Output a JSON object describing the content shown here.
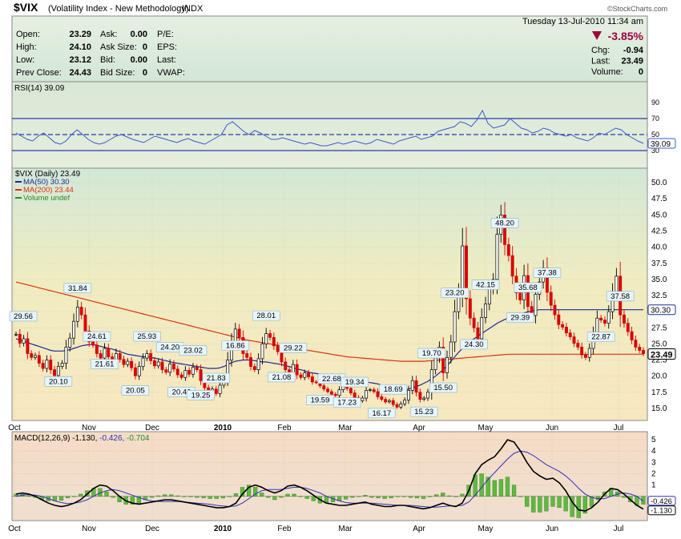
{
  "header": {
    "symbol": "$VIX",
    "name": "(Volatility Index - New Methodology)",
    "exchange": "INDX",
    "date": "Tuesday  13-Jul-2010 11:34 am",
    "brand": "©StockCharts.com"
  },
  "quote": {
    "rows": [
      {
        "l1": "Open:",
        "v1": "23.29",
        "l2": "Ask:",
        "v2": "0.00",
        "l3": "P/E:"
      },
      {
        "l1": "High:",
        "v1": "24.10",
        "l2": "Ask Size:",
        "v2": "0",
        "l3": "EPS:"
      },
      {
        "l1": "Low:",
        "v1": "23.12",
        "l2": "Bid:",
        "v2": "0.00",
        "l3": "Last:"
      },
      {
        "l1": "Prev Close:",
        "v1": "24.43",
        "l2": "Bid Size:",
        "v2": "0",
        "l3": "VWAP:"
      }
    ],
    "pct_change": "-3.85%",
    "right": [
      {
        "label": "Chg:",
        "value": "-0.94"
      },
      {
        "label": "Last:",
        "value": "23.49"
      },
      {
        "label": "Volume:",
        "value": "0"
      }
    ]
  },
  "colors": {
    "up": "#00a000",
    "down": "#e00000",
    "ma50": "#1a2a9a",
    "ma200": "#e03010",
    "rsi": "#3a5ad0",
    "macd": "#000000",
    "signal": "#3030c0",
    "hist": "#50b030",
    "grid": "#a0a0a0",
    "panel_bg_top": "#dcebe0",
    "down_arrow": "#a00040"
  },
  "chart_data": [
    {
      "type": "line",
      "title": "RSI(14) 39.09",
      "ylim": [
        10,
        100
      ],
      "yticks": [
        90,
        70,
        50,
        30
      ],
      "levels": [
        70,
        50,
        30
      ],
      "last_label": "39.09",
      "values": [
        52,
        48,
        44,
        42,
        48,
        52,
        46,
        40,
        38,
        42,
        50,
        56,
        50,
        44,
        40,
        38,
        40,
        44,
        48,
        50,
        47,
        44,
        42,
        40,
        44,
        48,
        46,
        44,
        42,
        40,
        43,
        45,
        42,
        40,
        38,
        42,
        46,
        50,
        62,
        66,
        60,
        54,
        50,
        55,
        52,
        48,
        44,
        44,
        46,
        44,
        42,
        40,
        38,
        40,
        38,
        36,
        36,
        38,
        40,
        38,
        40,
        42,
        40,
        38,
        40,
        44,
        42,
        40,
        38,
        42,
        44,
        46,
        48,
        44,
        46,
        48,
        54,
        56,
        58,
        60,
        66,
        64,
        60,
        68,
        80,
        64,
        58,
        60,
        62,
        70,
        64,
        58,
        56,
        52,
        54,
        58,
        56,
        52,
        50,
        48,
        50,
        46,
        44,
        42,
        46,
        52,
        50,
        54,
        58,
        56,
        50,
        46,
        42,
        39
      ]
    },
    {
      "type": "candlestick",
      "title": "$VIX (Daily) 23.49",
      "ylim": [
        13.5,
        52
      ],
      "yticks": [
        50.0,
        47.5,
        45.0,
        42.5,
        40.0,
        37.5,
        35.0,
        32.5,
        30.0,
        27.5,
        25.0,
        22.5,
        20.0,
        17.5,
        15.0
      ],
      "legend": [
        "MA(50) 30.30",
        "MA(200) 23.44",
        "Volume undef"
      ],
      "x_ticks": [
        "Oct",
        "Nov",
        "Dec",
        "2010",
        "Feb",
        "Mar",
        "Apr",
        "May",
        "Jun",
        "Jul"
      ],
      "last_price": "23.49",
      "ma50_label": "30.30",
      "closes": [
        26.5,
        25.1,
        25.8,
        23.5,
        22.9,
        23.2,
        22.0,
        21.2,
        22.5,
        21.0,
        20.1,
        21.5,
        22.0,
        24.5,
        25.9,
        28.5,
        30.7,
        29.5,
        27.0,
        25.3,
        24.8,
        23.5,
        22.8,
        24.3,
        23.0,
        22.1,
        23.5,
        22.6,
        21.8,
        22.3,
        21.3,
        20.05,
        21.5,
        22.8,
        23.5,
        22.4,
        21.6,
        22.2,
        21.0,
        20.6,
        21.9,
        21.1,
        20.2,
        19.8,
        20.9,
        20.3,
        21.4,
        21.0,
        19.3,
        18.2,
        17.5,
        18.0,
        17.3,
        18.6,
        19.5,
        22.5,
        25.4,
        27.3,
        26.0,
        23.5,
        22.9,
        21.5,
        21.0,
        22.7,
        25.0,
        26.6,
        26.0,
        24.7,
        23.8,
        22.2,
        21.0,
        20.5,
        21.8,
        20.2,
        19.8,
        20.5,
        19.9,
        19.1,
        19.0,
        18.5,
        18.0,
        17.6,
        17.2,
        17.0,
        17.9,
        18.7,
        18.1,
        17.4,
        16.7,
        16.2,
        16.6,
        17.8,
        17.9,
        17.6,
        16.8,
        16.4,
        16.0,
        16.2,
        15.6,
        15.2,
        15.7,
        16.3,
        17.8,
        19.3,
        17.5,
        16.4,
        16.6,
        17.5,
        21.0,
        22.8,
        24.5,
        20.5,
        22.9,
        25.3,
        30.0,
        33.0,
        40.2,
        32.0,
        29.0,
        27.5,
        25.8,
        29.1,
        31.2,
        33.5,
        35.0,
        42.0,
        45.0,
        40.4,
        38.7,
        35.5,
        32.9,
        31.8,
        35.6,
        30.8,
        29.4,
        32.7,
        34.6,
        36.8,
        33.0,
        31.0,
        29.5,
        28.0,
        27.6,
        26.7,
        26.1,
        25.1,
        24.5,
        23.3,
        22.9,
        24.3,
        26.6,
        29.0,
        28.7,
        28.2,
        30.0,
        33.0,
        35.5,
        29.5,
        28.2,
        26.9,
        25.6,
        24.5,
        24.0,
        23.49
      ],
      "ma50": [
        25.8,
        25.6,
        25.4,
        25.2,
        25.0,
        24.8,
        24.6,
        24.4,
        24.2,
        24.0,
        23.9,
        23.9,
        23.9,
        24.0,
        24.1,
        24.3,
        24.5,
        24.7,
        24.8,
        24.9,
        24.9,
        24.8,
        24.6,
        24.5,
        24.3,
        24.2,
        24.0,
        23.8,
        23.6,
        23.4,
        23.3,
        23.2,
        23.1,
        23.0,
        23.0,
        22.9,
        22.8,
        22.7,
        22.5,
        22.4,
        22.2,
        22.1,
        22.0,
        21.9,
        21.8,
        21.7,
        21.6,
        21.5,
        21.4,
        21.3,
        21.2,
        21.2,
        21.2,
        21.3,
        21.5,
        21.8,
        22.1,
        22.3,
        22.4,
        22.5,
        22.5,
        22.5,
        22.4,
        22.3,
        22.2,
        22.2,
        22.1,
        22.0,
        21.9,
        21.8,
        21.6,
        21.5,
        21.3,
        21.1,
        21.0,
        20.8,
        20.6,
        20.5,
        20.4,
        20.3,
        20.2,
        20.1,
        20.0,
        19.9,
        19.8,
        19.7,
        19.6,
        19.5,
        19.4,
        19.3,
        19.2,
        19.1,
        19.0,
        18.9,
        18.8,
        18.6,
        18.5,
        18.3,
        18.2,
        18.0,
        17.9,
        17.9,
        18.0,
        18.2,
        18.4,
        18.6,
        18.9,
        19.2,
        19.6,
        20.0,
        20.5,
        21.0,
        21.6,
        22.3,
        23.0,
        23.7,
        24.3,
        24.9,
        25.4,
        25.8,
        26.2,
        26.6,
        27.0,
        27.4,
        27.8,
        28.2,
        28.5,
        28.8,
        29.0,
        29.2,
        29.4,
        29.6,
        29.8,
        30.0,
        30.1,
        30.2,
        30.3,
        30.3,
        30.3,
        30.3,
        30.3,
        30.3,
        30.3,
        30.3,
        30.3,
        30.3,
        30.3,
        30.3,
        30.3,
        30.3,
        30.3,
        30.3,
        30.3,
        30.3,
        30.3,
        30.3,
        30.3,
        30.3,
        30.3,
        30.3,
        30.3,
        30.3,
        30.3,
        30.3
      ],
      "ma200": [
        34.6,
        34.45,
        34.3,
        34.15,
        34.0,
        33.85,
        33.7,
        33.55,
        33.4,
        33.25,
        33.1,
        32.95,
        32.8,
        32.65,
        32.5,
        32.35,
        32.2,
        32.05,
        31.9,
        31.75,
        31.6,
        31.45,
        31.3,
        31.15,
        31.0,
        30.85,
        30.7,
        30.55,
        30.4,
        30.25,
        30.1,
        29.95,
        29.8,
        29.65,
        29.5,
        29.35,
        29.2,
        29.05,
        28.9,
        28.75,
        28.6,
        28.45,
        28.3,
        28.15,
        28.0,
        27.85,
        27.7,
        27.55,
        27.4,
        27.25,
        27.1,
        26.95,
        26.8,
        26.65,
        26.5,
        26.35,
        26.2,
        26.05,
        25.9,
        25.75,
        25.6,
        25.5,
        25.4,
        25.3,
        25.2,
        25.1,
        25.0,
        24.9,
        24.8,
        24.7,
        24.6,
        24.5,
        24.4,
        24.3,
        24.2,
        24.1,
        24.0,
        23.9,
        23.8,
        23.7,
        23.6,
        23.5,
        23.4,
        23.3,
        23.2,
        23.1,
        23.0,
        22.95,
        22.9,
        22.85,
        22.8,
        22.75,
        22.7,
        22.65,
        22.6,
        22.55,
        22.5,
        22.45,
        22.4,
        22.35,
        22.3,
        22.3,
        22.3,
        22.3,
        22.3,
        22.3,
        22.3,
        22.35,
        22.4,
        22.45,
        22.5,
        22.55,
        22.6,
        22.65,
        22.7,
        22.75,
        22.8,
        22.85,
        22.9,
        22.95,
        23.0,
        23.05,
        23.1,
        23.15,
        23.2,
        23.25,
        23.3,
        23.35,
        23.4,
        23.4,
        23.4,
        23.4,
        23.4,
        23.4,
        23.4,
        23.4,
        23.4,
        23.4,
        23.4,
        23.4,
        23.4,
        23.4,
        23.4,
        23.4,
        23.4,
        23.4,
        23.4,
        23.4,
        23.4,
        23.4,
        23.4,
        23.4,
        23.4,
        23.4,
        23.4,
        23.4,
        23.4,
        23.4,
        23.4,
        23.4,
        23.4,
        23.4,
        23.4,
        23.44
      ],
      "annotations": [
        {
          "i": 0,
          "text": "29.56",
          "pos": "above"
        },
        {
          "i": 11,
          "text": "20.10",
          "pos": "below"
        },
        {
          "i": 16,
          "text": "31.84",
          "pos": "above"
        },
        {
          "i": 21,
          "text": "24.61",
          "pos": "above"
        },
        {
          "i": 23,
          "text": "21.61",
          "pos": "below"
        },
        {
          "i": 31,
          "text": "20.05",
          "pos": "below"
        },
        {
          "i": 34,
          "text": "25.93",
          "pos": "above"
        },
        {
          "i": 40,
          "text": "24.20",
          "pos": "above"
        },
        {
          "i": 43,
          "text": "20.46",
          "pos": "below"
        },
        {
          "i": 46,
          "text": "23.02",
          "pos": "above"
        },
        {
          "i": 48,
          "text": "19.25",
          "pos": "below"
        },
        {
          "i": 52,
          "text": "21.83",
          "pos": "above"
        },
        {
          "i": 57,
          "text": "16.86",
          "pos": "below"
        },
        {
          "i": 65,
          "text": "28.01",
          "pos": "above"
        },
        {
          "i": 69,
          "text": "21.08",
          "pos": "below"
        },
        {
          "i": 72,
          "text": "29.22",
          "pos": "above"
        },
        {
          "i": 79,
          "text": "19.59",
          "pos": "below"
        },
        {
          "i": 82,
          "text": "22.68",
          "pos": "above"
        },
        {
          "i": 86,
          "text": "17.23",
          "pos": "below"
        },
        {
          "i": 88,
          "text": "19.34",
          "pos": "above"
        },
        {
          "i": 95,
          "text": "16.17",
          "pos": "below"
        },
        {
          "i": 98,
          "text": "18.69",
          "pos": "above"
        },
        {
          "i": 106,
          "text": "15.23",
          "pos": "below"
        },
        {
          "i": 108,
          "text": "19.70",
          "pos": "above"
        },
        {
          "i": 111,
          "text": "15.50",
          "pos": "below"
        },
        {
          "i": 114,
          "text": "23.20",
          "pos": "above"
        },
        {
          "i": 119,
          "text": "24.30",
          "pos": "below"
        },
        {
          "i": 122,
          "text": "42.15",
          "pos": "above"
        },
        {
          "i": 127,
          "text": "48.20",
          "pos": "above"
        },
        {
          "i": 131,
          "text": "29.39",
          "pos": "below"
        },
        {
          "i": 133,
          "text": "35.68",
          "pos": "above"
        },
        {
          "i": 138,
          "text": "37.38",
          "pos": "above"
        },
        {
          "i": 152,
          "text": "22.87",
          "pos": "below"
        },
        {
          "i": 157,
          "text": "37.58",
          "pos": "above"
        }
      ]
    },
    {
      "type": "line",
      "title": "MACD(12,26,9) -1.130, -0.426, -0.704",
      "title_parts": [
        "MACD(12,26,9) -1.130,",
        "-0.426,",
        "-0.704"
      ],
      "ylim": [
        -2,
        5.5
      ],
      "yticks": [
        5,
        4,
        3,
        2,
        1
      ],
      "labels_right": [
        "-0.426",
        "-1.130"
      ],
      "macd": [
        0.2,
        0.3,
        0.2,
        0.0,
        -0.3,
        -0.6,
        -0.8,
        -0.9,
        -0.8,
        -0.6,
        -0.3,
        0.2,
        0.7,
        1.0,
        0.9,
        0.5,
        0.0,
        -0.4,
        -0.6,
        -0.7,
        -0.6,
        -0.5,
        -0.4,
        -0.3,
        -0.3,
        -0.4,
        -0.5,
        -0.6,
        -0.7,
        -0.8,
        -0.9,
        -1.0,
        -1.0,
        -0.9,
        -0.6,
        0.2,
        0.8,
        1.0,
        0.8,
        0.5,
        0.3,
        0.5,
        0.9,
        1.0,
        0.8,
        0.5,
        0.1,
        -0.3,
        -0.6,
        -0.7,
        -0.8,
        -0.8,
        -0.7,
        -0.6,
        -0.5,
        -0.7,
        -0.8,
        -0.9,
        -0.9,
        -0.8,
        -0.8,
        -0.9,
        -1.0,
        -1.1,
        -1.0,
        -0.8,
        -0.6,
        -0.8,
        -0.9,
        -0.6,
        0.5,
        2.0,
        2.8,
        3.2,
        3.5,
        4.2,
        5.0,
        4.8,
        4.0,
        3.0,
        2.2,
        1.8,
        1.5,
        1.6,
        1.2,
        0.5,
        -0.5,
        -1.2,
        -1.3,
        -1.0,
        -0.5,
        0.2,
        0.7,
        0.6,
        0.2,
        -0.3,
        -0.8,
        -1.13
      ],
      "signal": [
        0.0,
        0.1,
        0.15,
        0.1,
        0.0,
        -0.2,
        -0.4,
        -0.55,
        -0.65,
        -0.6,
        -0.5,
        -0.3,
        0.0,
        0.3,
        0.5,
        0.6,
        0.5,
        0.3,
        0.1,
        -0.1,
        -0.3,
        -0.4,
        -0.45,
        -0.45,
        -0.45,
        -0.45,
        -0.5,
        -0.55,
        -0.6,
        -0.65,
        -0.7,
        -0.8,
        -0.85,
        -0.9,
        -0.85,
        -0.6,
        -0.2,
        0.2,
        0.5,
        0.6,
        0.6,
        0.6,
        0.7,
        0.8,
        0.8,
        0.7,
        0.5,
        0.3,
        0.0,
        -0.2,
        -0.4,
        -0.55,
        -0.6,
        -0.6,
        -0.6,
        -0.6,
        -0.65,
        -0.7,
        -0.75,
        -0.8,
        -0.8,
        -0.8,
        -0.85,
        -0.9,
        -0.95,
        -0.95,
        -0.9,
        -0.85,
        -0.85,
        -0.8,
        -0.5,
        0.1,
        0.8,
        1.5,
        2.1,
        2.7,
        3.3,
        3.8,
        4.0,
        3.9,
        3.6,
        3.2,
        2.8,
        2.5,
        2.2,
        1.8,
        1.3,
        0.7,
        0.2,
        -0.1,
        -0.2,
        -0.2,
        0.0,
        0.2,
        0.3,
        0.2,
        0.0,
        -0.43
      ]
    }
  ]
}
